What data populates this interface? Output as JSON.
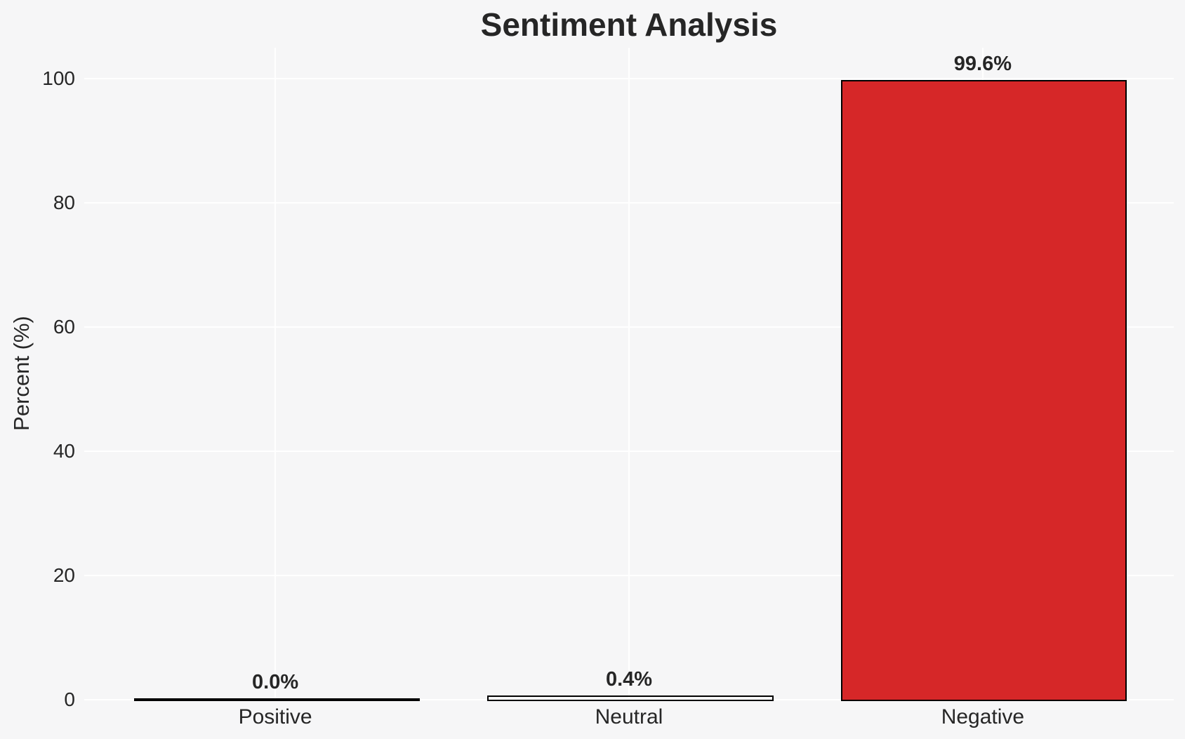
{
  "figure": {
    "background_color": "#f6f6f7",
    "grid_color": "#ffffff",
    "text_color": "#262626"
  },
  "chart_data": {
    "type": "bar",
    "title": "Sentiment Analysis",
    "xlabel": "",
    "ylabel": "Percent (%)",
    "categories": [
      "Positive",
      "Neutral",
      "Negative"
    ],
    "values": [
      0.0,
      0.4,
      99.6
    ],
    "value_labels": [
      "0.0%",
      "0.4%",
      "99.6%"
    ],
    "yticks": [
      "0",
      "20",
      "40",
      "60",
      "80",
      "100"
    ],
    "ytick_values": [
      0,
      20,
      40,
      60,
      80,
      100
    ],
    "ylim": [
      0,
      105
    ],
    "grid": true,
    "legend": false,
    "bar_fill_colors": [
      "none",
      "none",
      "#d62728"
    ],
    "bar_edge_color": "#000000"
  }
}
